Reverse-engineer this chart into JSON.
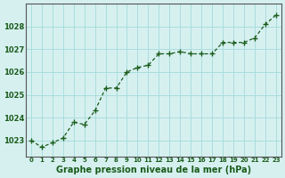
{
  "x": [
    0,
    1,
    2,
    3,
    4,
    5,
    6,
    7,
    8,
    9,
    10,
    11,
    12,
    13,
    14,
    15,
    16,
    17,
    18,
    19,
    20,
    21,
    22,
    23
  ],
  "y": [
    1023.0,
    1022.7,
    1022.9,
    1023.1,
    1023.8,
    1023.7,
    1024.3,
    1025.3,
    1025.3,
    1026.0,
    1026.2,
    1026.3,
    1026.8,
    1026.8,
    1026.9,
    1026.8,
    1026.8,
    1026.8,
    1027.3,
    1027.3,
    1027.3,
    1027.5,
    1028.1,
    1028.5
  ],
  "ylim": [
    1022.3,
    1029.0
  ],
  "yticks": [
    1023,
    1024,
    1025,
    1026,
    1027,
    1028
  ],
  "xtick_labels": [
    "0",
    "1",
    "2",
    "3",
    "4",
    "5",
    "6",
    "7",
    "8",
    "9",
    "10",
    "11",
    "12",
    "13",
    "14",
    "15",
    "16",
    "17",
    "18",
    "19",
    "20",
    "21",
    "22",
    "23"
  ],
  "line_color": "#1a5c1a",
  "marker": "+",
  "marker_color": "#1a5c1a",
  "bg_color": "#d6f0f0",
  "grid_color": "#aadddd",
  "xlabel": "Graphe pression niveau de la mer (hPa)",
  "xlabel_color": "#1a5c1a",
  "title_color": "#1a5c1a",
  "tick_label_color": "#1a5c1a",
  "axis_color": "#555555"
}
